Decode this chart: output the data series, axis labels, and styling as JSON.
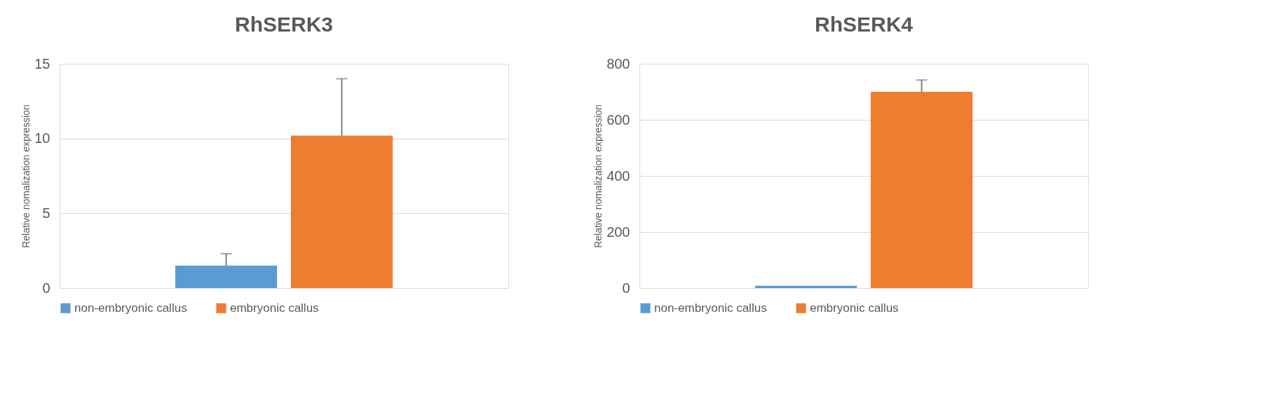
{
  "chart_data": [
    {
      "type": "bar",
      "title": "RhSERK3",
      "ylabel": "Relative nomalization expression",
      "categories": [
        null
      ],
      "ylim": [
        0,
        15
      ],
      "yticks": [
        0,
        5,
        10,
        15
      ],
      "grid": "y",
      "legend": "bottom",
      "series": [
        {
          "name": "non-embryonic callus",
          "color": "#5b9bd5",
          "values": [
            1.5
          ],
          "errors": [
            [
              1.5,
              2.3
            ]
          ]
        },
        {
          "name": "embryonic callus",
          "color": "#ed7d31",
          "values": [
            10.2
          ],
          "errors": [
            [
              10.2,
              14.0
            ]
          ]
        }
      ]
    },
    {
      "type": "bar",
      "title": "RhSERK4",
      "ylabel": "Relative nomalization expression",
      "categories": [
        null
      ],
      "ylim": [
        0,
        800
      ],
      "yticks": [
        0,
        200,
        400,
        600,
        800
      ],
      "grid": "y",
      "legend": "bottom",
      "series": [
        {
          "name": "non-embryonic callus",
          "color": "#5b9bd5",
          "values": [
            8
          ]
        },
        {
          "name": "embryonic callus",
          "color": "#ed7d31",
          "values": [
            700
          ],
          "errors": [
            [
              700,
              742
            ]
          ]
        }
      ]
    }
  ]
}
